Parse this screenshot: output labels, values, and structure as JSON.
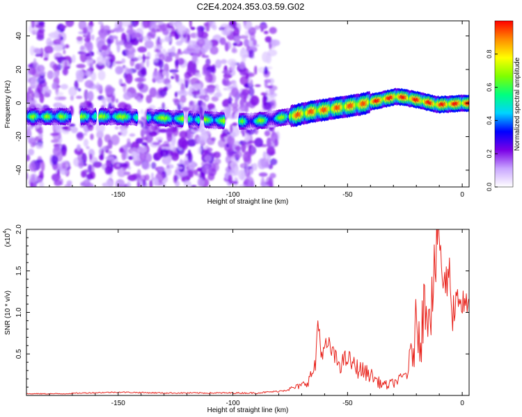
{
  "title": "C2E4.2024.353.03.59.G02",
  "chart_data": [
    {
      "type": "heatmap",
      "description": "spectrogram",
      "xlabel": "Height of straight line (km)",
      "ylabel": "Frequency (Hz)",
      "xlim": [
        -190,
        3
      ],
      "ylim": [
        -50,
        49
      ],
      "xticks": [
        -150,
        -100,
        -50,
        0
      ],
      "yticks": [
        -40,
        -20,
        0,
        20,
        40
      ],
      "colorbar": {
        "label": "Normalized spectral amplitude",
        "range": [
          0,
          1
        ],
        "ticks": [
          "0.0",
          "0.2",
          "0.4",
          "0.6",
          "0.8"
        ],
        "colormap": [
          "#ffffff",
          "#c9a6ff",
          "#7a00e6",
          "#0000ff",
          "#00d4ff",
          "#00ff7f",
          "#7fff00",
          "#ffff00",
          "#ff8c00",
          "#ff0000"
        ]
      },
      "ridge": {
        "x": [
          -190,
          -170,
          -150,
          -130,
          -110,
          -100,
          -93,
          -85,
          -75,
          -65,
          -55,
          -45,
          -35,
          -28,
          -20,
          -10,
          0
        ],
        "frequency": [
          -8,
          -8,
          -8,
          -9,
          -10,
          -11,
          -11,
          -10,
          -8,
          -5,
          -3,
          -1,
          2,
          4,
          2,
          -1,
          0
        ]
      }
    },
    {
      "type": "line",
      "xlabel": "Height of straight line (km)",
      "ylabel": "SNR (10 * v/v)",
      "yscale_label": "(x10",
      "yscale_exp": "4",
      "y_unit_multiplier": 10000,
      "xlim": [
        -190,
        3
      ],
      "ylim": [
        0,
        2.0
      ],
      "xticks": [
        -150,
        -100,
        -50,
        0
      ],
      "yticks": [
        "0.5",
        "1.0",
        "1.5",
        "2.0"
      ],
      "series_color": "#e8211a",
      "anchors": {
        "x": [
          -190,
          -175,
          -165,
          -150,
          -130,
          -110,
          -90,
          -80,
          -75,
          -70,
          -67,
          -64,
          -63,
          -61,
          -59,
          -57,
          -55,
          -53,
          -50,
          -47,
          -44,
          -40,
          -36,
          -33,
          -30,
          -27,
          -24,
          -21,
          -20,
          -18,
          -16,
          -14,
          -12,
          -10,
          -8,
          -6,
          -4,
          -2,
          0,
          3
        ],
        "y": [
          0.02,
          0.02,
          0.03,
          0.04,
          0.03,
          0.03,
          0.03,
          0.05,
          0.08,
          0.12,
          0.18,
          0.35,
          0.92,
          0.45,
          0.62,
          0.55,
          0.42,
          0.38,
          0.45,
          0.35,
          0.3,
          0.25,
          0.15,
          0.12,
          0.15,
          0.2,
          0.28,
          0.6,
          0.9,
          0.75,
          1.2,
          1.05,
          1.5,
          2.0,
          1.2,
          1.55,
          1.0,
          1.25,
          1.1,
          1.05
        ]
      },
      "noise_amplitude": {
        "x": [
          -190,
          -80,
          -70,
          -62,
          -45,
          -35,
          -25,
          -20,
          -15,
          -5,
          3
        ],
        "amp": [
          0.006,
          0.01,
          0.04,
          0.12,
          0.12,
          0.06,
          0.06,
          0.35,
          0.45,
          0.3,
          0.15
        ]
      }
    }
  ]
}
